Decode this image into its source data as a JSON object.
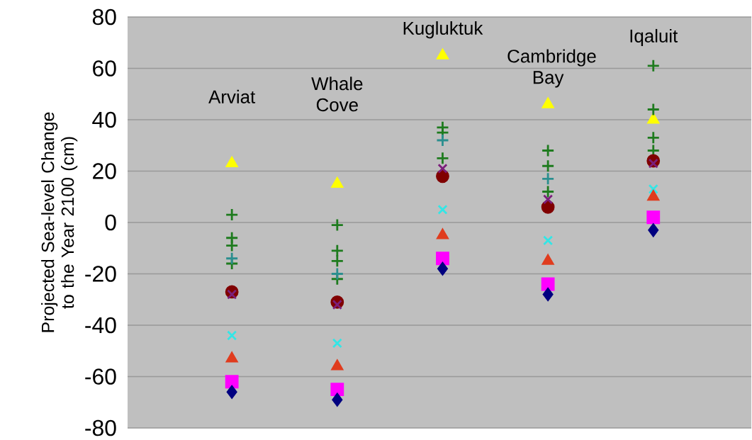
{
  "chart_data": {
    "type": "scatter",
    "ylabel": "Projected Sea-level Change to the Year 2100 (cm)",
    "categories": [
      "Arviat",
      "Whale Cove",
      "Kugluktuk",
      "Cambridge Bay",
      "Iqaluit"
    ],
    "ylim": [
      -80,
      80
    ],
    "yticks": [
      -80,
      -60,
      -40,
      -20,
      0,
      20,
      40,
      60,
      80
    ],
    "grid": "y",
    "series": [
      {
        "color": "#ffff00",
        "marker": "triangle",
        "values": [
          23,
          15,
          65,
          46,
          40
        ]
      },
      {
        "color": "#1e7b1e",
        "marker": "plus",
        "values": [
          3,
          -1,
          37,
          28,
          61
        ]
      },
      {
        "color": "#1e7b1e",
        "marker": "plus",
        "values": [
          -6,
          -11,
          35,
          22,
          44
        ]
      },
      {
        "color": "#1e7b1e",
        "marker": "plus",
        "values": [
          -9,
          -15,
          null,
          12,
          33
        ]
      },
      {
        "color": "#1e7b1e",
        "marker": "plus",
        "values": [
          -16,
          -22,
          25,
          null,
          28
        ]
      },
      {
        "color": "#2b8f8f",
        "marker": "plus",
        "values": [
          -14,
          -20,
          32,
          17,
          null
        ]
      },
      {
        "color": "#800000",
        "marker": "circle",
        "values": [
          -27,
          -31,
          18,
          6,
          24
        ]
      },
      {
        "color": "#7b1f7b",
        "marker": "cross",
        "values": [
          -28,
          -32,
          21,
          9,
          23
        ]
      },
      {
        "color": "#33e6e6",
        "marker": "cross",
        "values": [
          -44,
          -47,
          5,
          -7,
          13
        ]
      },
      {
        "color": "#e03c1e",
        "marker": "triangle",
        "values": [
          -53,
          -56,
          -5,
          -15,
          10
        ]
      },
      {
        "color": "#ff00ff",
        "marker": "square",
        "values": [
          -62,
          -65,
          -14,
          -24,
          2
        ]
      },
      {
        "color": "#000080",
        "marker": "diamond",
        "values": [
          -66,
          -69,
          -18,
          -28,
          -3
        ]
      }
    ]
  }
}
